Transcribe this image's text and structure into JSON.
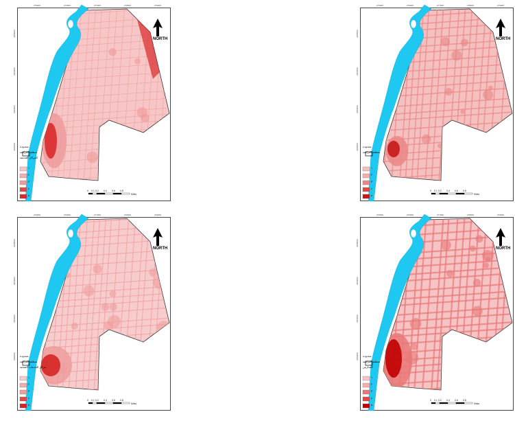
{
  "north_label": "NORTH",
  "scale": {
    "ticks": [
      "0",
      "0.1",
      "0.2",
      "0.4",
      "0.6",
      "0.8"
    ],
    "unit": "Miles"
  },
  "coordinates": {
    "top": [
      "275000",
      "276000",
      "277000",
      "278000",
      "279000"
    ],
    "side": [
      "3485000",
      "3484000",
      "3483000",
      "3482000"
    ]
  },
  "legend_classes": [
    "١",
    "٢",
    "٣",
    "٤",
    "٥"
  ],
  "maps": [
    {
      "id": "map-tl",
      "legend_labels": [
        "محدودة",
        "منطقة الدراسة",
        "المراكز الخدمية"
      ],
      "colors": {
        "river": "#1ec8f0",
        "base": "#f7c7c7",
        "mid": "#ee9a9a",
        "high": "#d92a2a"
      }
    },
    {
      "id": "map-tr",
      "legend_labels": [
        "محدودة",
        "منطقة الدراسة"
      ],
      "colors": {
        "river": "#1ec8f0",
        "base": "#f4c0c0",
        "mid": "#ea8686",
        "high": "#c81818"
      }
    },
    {
      "id": "map-bl",
      "legend_labels": [
        "محدودة",
        "منطقة الدراسة",
        "مراكز الخدمات الصحية"
      ],
      "colors": {
        "river": "#1ec8f0",
        "base": "#f7cccc",
        "mid": "#ef9c9c",
        "high": "#d62424"
      }
    },
    {
      "id": "map-br",
      "legend_labels": [
        "محدودة",
        "منطقة الدراسة",
        "المدارس"
      ],
      "colors": {
        "river": "#1ec8f0",
        "base": "#f6c4c4",
        "mid": "#e97878",
        "high": "#c00000"
      }
    }
  ]
}
